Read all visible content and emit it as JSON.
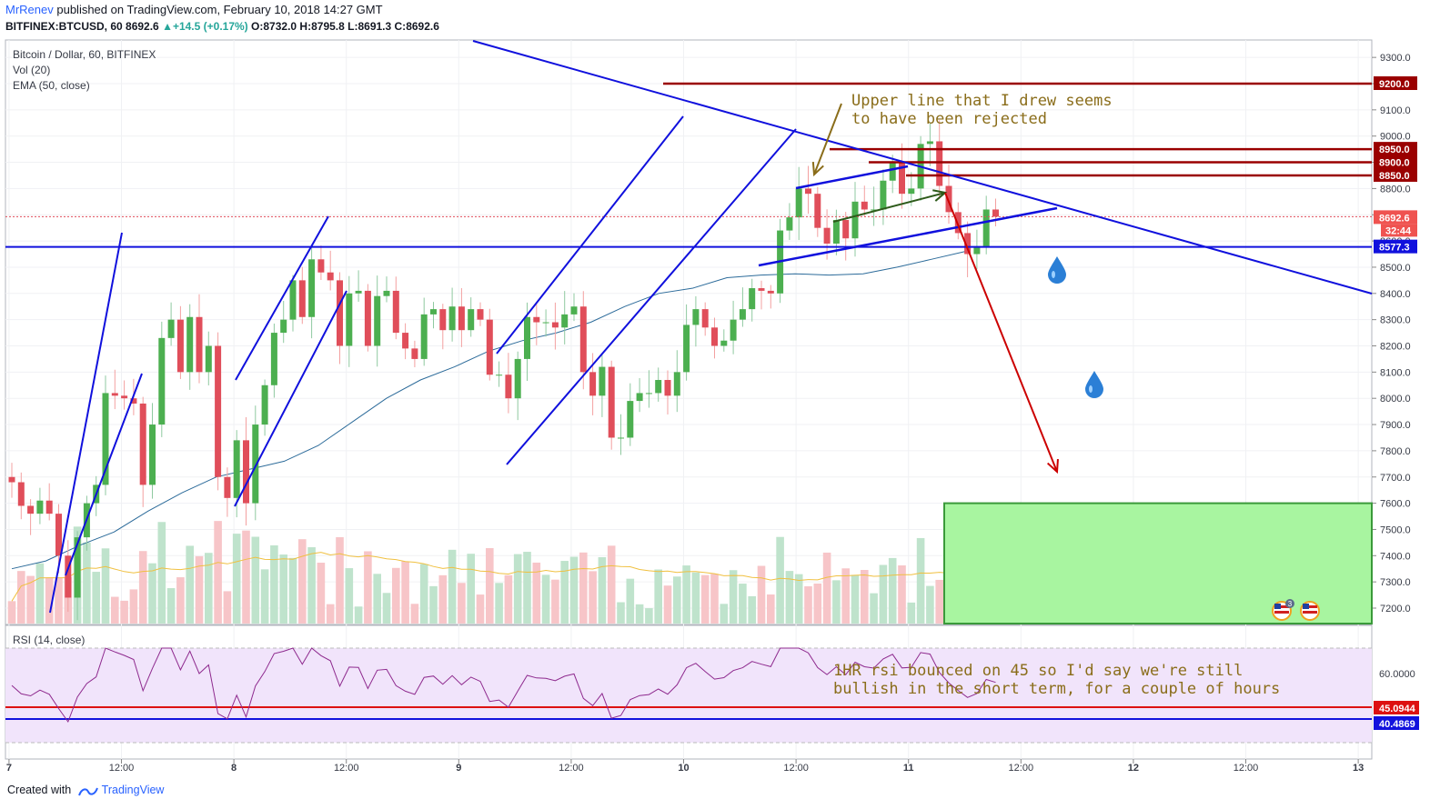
{
  "header": {
    "author": "MrRenev",
    "published": " published on TradingView.com, February 10, 2018 14:27 GMT",
    "symbol_line_prefix": "BITFINEX:BTCUSD, 60 ",
    "last": "8692.6",
    "change": "+14.5 (+0.17%)",
    "ohlc_open_label": "O:",
    "ohlc_open": "8732.0",
    "ohlc_high_label": "H:",
    "ohlc_high": "8795.8",
    "ohlc_low_label": "L:",
    "ohlc_low": "8691.3",
    "ohlc_close_label": "C:",
    "ohlc_close": "8692.6"
  },
  "legend": {
    "title": "Bitcoin / Dollar, 60, BITFINEX",
    "vol": "Vol (20)",
    "ema": "EMA (50, close)",
    "rsi": "RSI (14, close)"
  },
  "footer": {
    "created_with": "Created with",
    "brand": "TradingView"
  },
  "annotations": {
    "upper_note_line1": "Upper line that I drew seems",
    "upper_note_line2": "to have been rejected",
    "rsi_note_line1": "1HR rsi bounced on 45 so I'd say we're still",
    "rsi_note_line2": "bullish in the short term, for a couple of hours"
  },
  "colors": {
    "bull": "#26a69a",
    "bull_body": "#4caf50",
    "bear": "#ef5350",
    "trendline": "#1010dd",
    "resistance": "#9a0000",
    "arrow_red": "#cc0000",
    "arrow_green": "#2d5a1a",
    "arrow_brown": "#8a6d1a",
    "note_text": "#8a6d1a",
    "target_zone": "#a8f5a0",
    "target_border": "#3a9a3a",
    "rsi_band": "#f1e4fb",
    "rsi_line": "#8e2a8e",
    "ema": "#2c6b9a",
    "vol_ma": "#f0c040"
  },
  "chart_data": {
    "type": "candlestick",
    "title": "Bitcoin / Dollar, 60, BITFINEX",
    "y_axis": {
      "ticks": [
        7200,
        7300,
        7400,
        7500,
        7600,
        7700,
        7800,
        7900,
        8000,
        8100,
        8200,
        8300,
        8400,
        8500,
        8600,
        8700,
        8800,
        8900,
        9000,
        9100,
        9200,
        9300
      ],
      "range": [
        7140,
        9340
      ]
    },
    "x_axis": {
      "ticks": [
        "7",
        "12:00",
        "8",
        "12:00",
        "9",
        "12:00",
        "10",
        "12:00",
        "11",
        "12:00",
        "12",
        "12:00",
        "13"
      ],
      "unit": "hours from Feb 7 00:00 (GMT)",
      "range": [
        -0.5,
        118.5
      ]
    },
    "price_labels": [
      {
        "value": 9200.0,
        "label": "9200.0",
        "kind": "resistance"
      },
      {
        "value": 8950.0,
        "label": "8950.0",
        "kind": "resistance"
      },
      {
        "value": 8900.0,
        "label": "8900.0",
        "kind": "resistance"
      },
      {
        "value": 8850.0,
        "label": "8850.0",
        "kind": "resistance"
      },
      {
        "value": 8692.6,
        "label": "8692.6",
        "kind": "last"
      },
      {
        "value": 8577.3,
        "label": "8577.3",
        "kind": "support"
      }
    ],
    "countdown": "32:44",
    "candles_close": [
      7680,
      7590,
      7560,
      7610,
      7560,
      7400,
      7240,
      7470,
      7600,
      7670,
      8020,
      8010,
      8000,
      7980,
      7670,
      7900,
      8230,
      8300,
      8100,
      8310,
      8100,
      8200,
      7700,
      7620,
      7840,
      7600,
      7900,
      8050,
      8250,
      8300,
      8450,
      8310,
      8530,
      8480,
      8450,
      8200,
      8400,
      8410,
      8200,
      8390,
      8410,
      8250,
      8190,
      8150,
      8320,
      8340,
      8260,
      8350,
      8260,
      8340,
      8300,
      8090,
      8090,
      8000,
      8150,
      8310,
      8290,
      8290,
      8270,
      8320,
      8350,
      8100,
      8010,
      8120,
      7850,
      7850,
      7990,
      8020,
      8020,
      8070,
      8010,
      8100,
      8280,
      8340,
      8270,
      8200,
      8220,
      8300,
      8340,
      8420,
      8410,
      8400,
      8640,
      8690,
      8800,
      8780,
      8650,
      8590,
      8680,
      8610,
      8750,
      8720,
      8720,
      8830,
      8900,
      8780,
      8800,
      8970,
      8980,
      8810,
      8710,
      8630,
      8550,
      8580,
      8720,
      8692.6
    ],
    "ema50": [
      7350,
      7380,
      7440,
      7490,
      7570,
      7640,
      7700,
      7730,
      7760,
      7820,
      7910,
      8000,
      8070,
      8120,
      8180,
      8220,
      8250,
      8290,
      8350,
      8400,
      8420,
      8460,
      8470,
      8475,
      8470,
      8475,
      8500,
      8530,
      8560
    ],
    "volume": {
      "note": "relative volume bars, oldest to newest"
    },
    "series": [
      {
        "name": "Vol (20)",
        "values": []
      },
      {
        "name": "EMA (50, close)",
        "values": []
      }
    ],
    "rsi": {
      "levels_labels": [
        "60.0000",
        "45.0944",
        "40.4869"
      ],
      "range": [
        20,
        80
      ]
    }
  }
}
